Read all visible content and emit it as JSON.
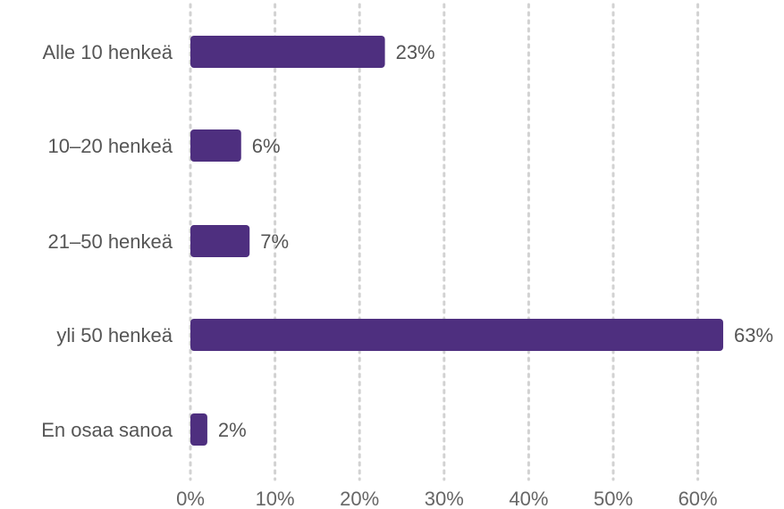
{
  "chart_data": {
    "type": "bar",
    "orientation": "horizontal",
    "categories": [
      "Alle 10 henkeä",
      "10–20 henkeä",
      "21–50 henkeä",
      "yli 50 henkeä",
      "En osaa sanoa"
    ],
    "values": [
      23,
      6,
      7,
      63,
      2
    ],
    "value_labels": [
      "23%",
      "6%",
      "7%",
      "63%",
      "2%"
    ],
    "xlim": [
      0,
      63
    ],
    "x_ticks": [
      0,
      10,
      20,
      30,
      40,
      50,
      60
    ],
    "x_tick_labels": [
      "0%",
      "10%",
      "20%",
      "30%",
      "40%",
      "50%",
      "60%"
    ],
    "grid": "vertical-dotted",
    "legend": "none",
    "bar_color": "#4e2f7f",
    "grid_color": "#d2d2d2",
    "title": "",
    "xlabel": "",
    "ylabel": ""
  }
}
